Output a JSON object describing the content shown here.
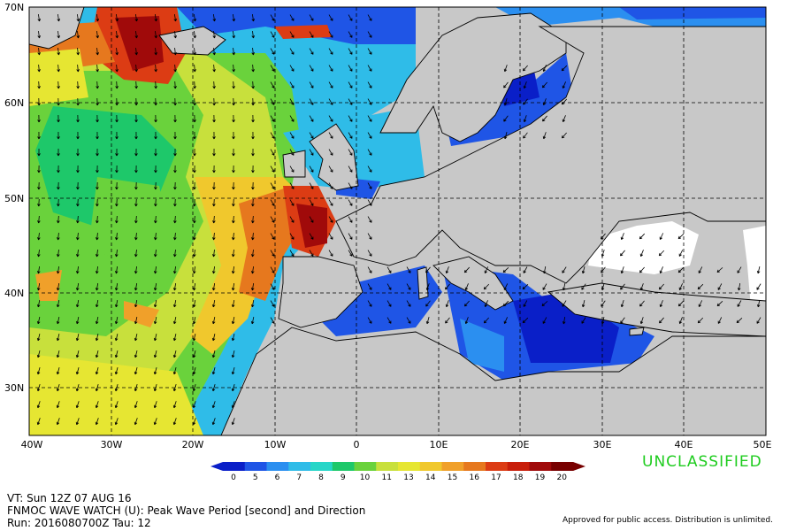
{
  "map": {
    "lat_labels": [
      "70N",
      "60N",
      "50N",
      "40N",
      "30N"
    ],
    "lon_labels": [
      "40W",
      "30W",
      "20W",
      "10W",
      "0",
      "10E",
      "20E",
      "30E",
      "40E",
      "50E"
    ]
  },
  "colorbar": {
    "ticks": [
      "0",
      "5",
      "6",
      "7",
      "8",
      "9",
      "10",
      "11",
      "13",
      "14",
      "15",
      "16",
      "17",
      "18",
      "19",
      "20"
    ],
    "colors": [
      "#0a1fc8",
      "#1f55e6",
      "#2b8ff0",
      "#2fbce8",
      "#27d6c8",
      "#1ec86a",
      "#6ad23c",
      "#c8e03c",
      "#e6e632",
      "#f0c82d",
      "#f0a02a",
      "#e6781e",
      "#dc3c14",
      "#c81e0a",
      "#a00a0a",
      "#780000"
    ]
  },
  "classification": "UNCLASSIFIED",
  "footer": {
    "vt": "VT: Sun 12Z 07 AUG 16",
    "product": "FNMOC WAVE WATCH (U): Peak Wave Period [second] and Direction",
    "run": "Run: 2016080700Z Tau: 12",
    "approved": "Approved for public access. Distribution is unlimited."
  }
}
